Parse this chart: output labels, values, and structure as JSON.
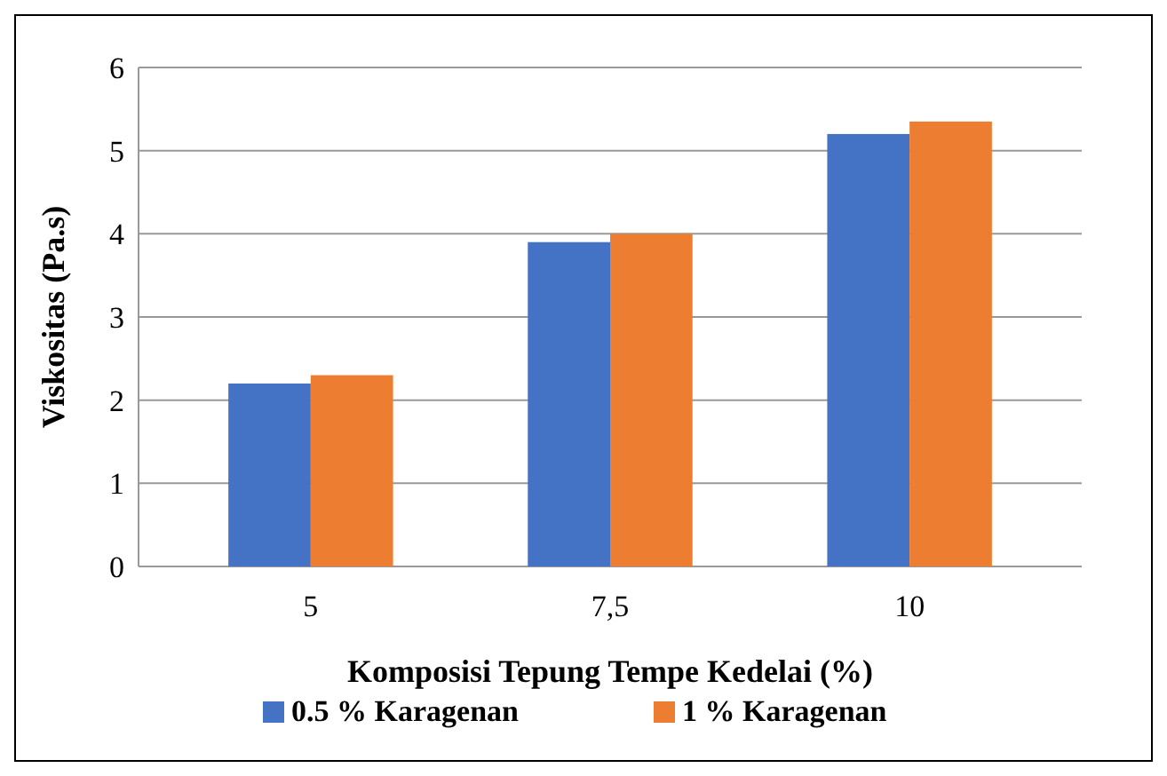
{
  "chart_data": {
    "type": "bar",
    "xlabel": "Komposisi Tepung Tempe Kedelai (%)",
    "ylabel": "Viskositas (Pa.s)",
    "categories": [
      "5",
      "7,5",
      "10"
    ],
    "series": [
      {
        "name": "0.5 %  Karagenan",
        "color": "#4472c4",
        "values": [
          2.2,
          3.9,
          5.2
        ]
      },
      {
        "name": "1 %  Karagenan",
        "color": "#ed7d31",
        "values": [
          2.3,
          4.0,
          5.35
        ]
      }
    ],
    "ylim": [
      0,
      6
    ],
    "yticks": [
      0,
      1,
      2,
      3,
      4,
      5,
      6
    ],
    "grid": "y",
    "legend": "bottom"
  }
}
